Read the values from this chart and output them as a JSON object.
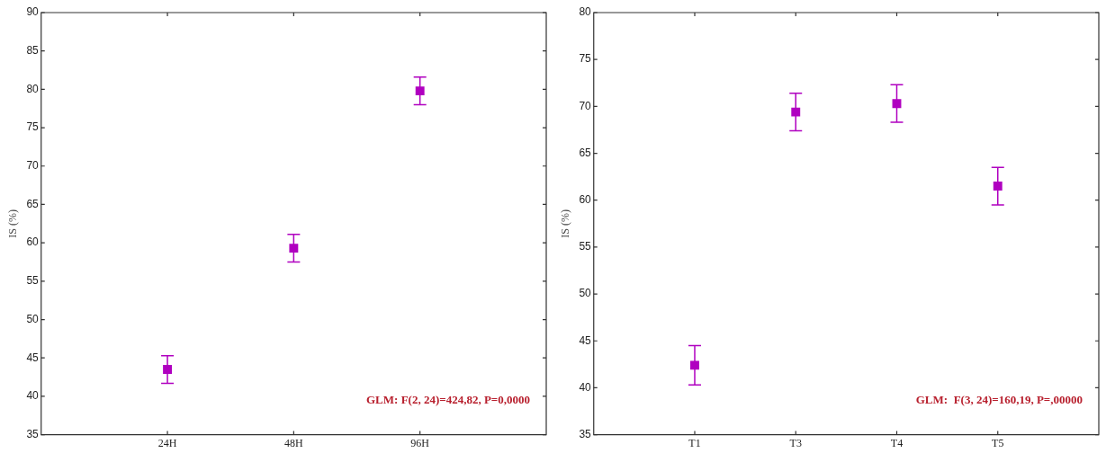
{
  "chart_data": [
    {
      "type": "scatter",
      "ylabel": "IS (%)",
      "categories": [
        "24H",
        "48H",
        "96H"
      ],
      "series": [
        {
          "color": "#b000c0",
          "values": [
            43.5,
            59.3,
            79.8
          ],
          "errors": [
            1.8,
            1.8,
            1.8
          ]
        }
      ],
      "ylim": [
        35,
        90
      ],
      "yticks": [
        35,
        40,
        45,
        50,
        55,
        60,
        65,
        70,
        75,
        80,
        85,
        90
      ],
      "marker": "square",
      "grid": false,
      "legend": false,
      "annotations": [
        "GLM: F(2, 24)=424,82, P=0,0000"
      ]
    },
    {
      "type": "scatter",
      "ylabel": "IS (%)",
      "categories": [
        "T1",
        "T3",
        "T4",
        "T5"
      ],
      "series": [
        {
          "color": "#b000c0",
          "values": [
            42.4,
            69.4,
            70.3,
            61.5
          ],
          "errors": [
            2.1,
            2.0,
            2.0,
            2.0
          ]
        }
      ],
      "ylim": [
        35,
        80
      ],
      "yticks": [
        35,
        40,
        45,
        50,
        55,
        60,
        65,
        70,
        75,
        80
      ],
      "marker": "square",
      "grid": false,
      "legend": false,
      "annotations": [
        "GLM:  F(3, 24)=160,19, P=,00000"
      ]
    }
  ]
}
